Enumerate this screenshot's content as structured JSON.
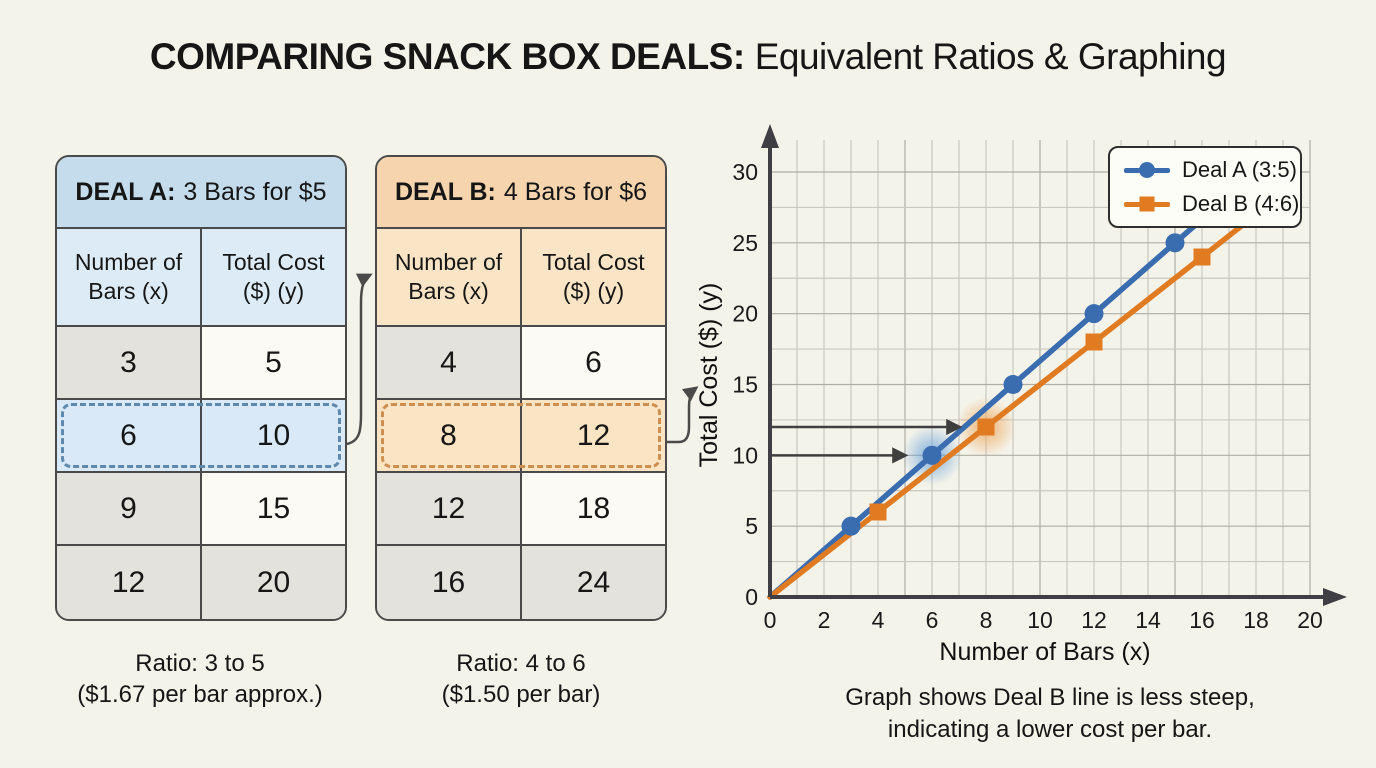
{
  "page": {
    "background": "#f4f3ea",
    "title_bold": "COMPARING SNACK BOX DEALS:",
    "title_rest": "Equivalent Ratios & Graphing"
  },
  "deal_a": {
    "title_label": "DEAL A:",
    "title_rest": "3 Bars for $5",
    "col1_header": "Number of Bars (x)",
    "col2_header": "Total Cost ($) (y)",
    "rows": [
      [
        "3",
        "5"
      ],
      [
        "6",
        "10"
      ],
      [
        "9",
        "15"
      ],
      [
        "12",
        "20"
      ]
    ],
    "highlighted_row": [
      "6",
      "10"
    ],
    "caption_line1": "Ratio: 3 to 5",
    "caption_line2": "($1.67 per bar approx.)",
    "header_color": "#c5dcec",
    "subheader_color": "#dcebf5",
    "highlight_fill": "#d9e9f7",
    "highlight_border": "#5f88ad"
  },
  "deal_b": {
    "title_label": "DEAL B:",
    "title_rest": "4 Bars for $6",
    "col1_header": "Number of Bars (x)",
    "col2_header": "Total Cost ($) (y)",
    "rows": [
      [
        "4",
        "6"
      ],
      [
        "8",
        "12"
      ],
      [
        "12",
        "18"
      ],
      [
        "16",
        "24"
      ]
    ],
    "highlighted_row": [
      "8",
      "12"
    ],
    "caption_line1": "Ratio: 4 to 6",
    "caption_line2": "($1.50 per bar)",
    "header_color": "#f6d5ae",
    "subheader_color": "#fae4c6",
    "highlight_fill": "#fbe4c4",
    "highlight_border": "#cd8f50"
  },
  "graph": {
    "note_line1": "Graph shows Deal B line is less steep,",
    "note_line2": "indicating a lower cost per bar.",
    "axis_color": "#3e3e44",
    "grid_minor_color": "#c9c8bf",
    "grid_major_color": "#aeada4"
  },
  "chart_data": {
    "type": "line",
    "title": "COMPARING SNACK BOX DEALS: Equivalent Ratios & Graphing",
    "xlabel": "Number of Bars (x)",
    "ylabel": "Total Cost ($) (y)",
    "xlim": [
      0,
      20
    ],
    "ylim": [
      0,
      30
    ],
    "x_ticks": [
      0,
      2,
      4,
      6,
      8,
      10,
      12,
      14,
      16,
      18,
      20
    ],
    "y_ticks": [
      0,
      5,
      10,
      15,
      20,
      25,
      30
    ],
    "grid": true,
    "legend_position": "top-right",
    "series": [
      {
        "name": "Deal A (3:5)",
        "color": "#3a6cb0",
        "marker": "circle",
        "x": [
          3,
          6,
          9,
          12,
          15
        ],
        "y": [
          5,
          10,
          15,
          20,
          25
        ],
        "unit_rate_text": "$1.67 per bar approx."
      },
      {
        "name": "Deal B (4:6)",
        "color": "#e07b22",
        "marker": "square",
        "x": [
          4,
          8,
          12,
          16
        ],
        "y": [
          6,
          12,
          18,
          24
        ],
        "unit_rate_text": "$1.50 per bar"
      }
    ],
    "annotations": [
      {
        "label": "arrow to Deal A highlighted point",
        "x": 6,
        "y": 10,
        "glow": "#5f9bd8"
      },
      {
        "label": "arrow to Deal B highlighted point",
        "x": 8,
        "y": 12,
        "glow": "#eda050"
      }
    ]
  }
}
